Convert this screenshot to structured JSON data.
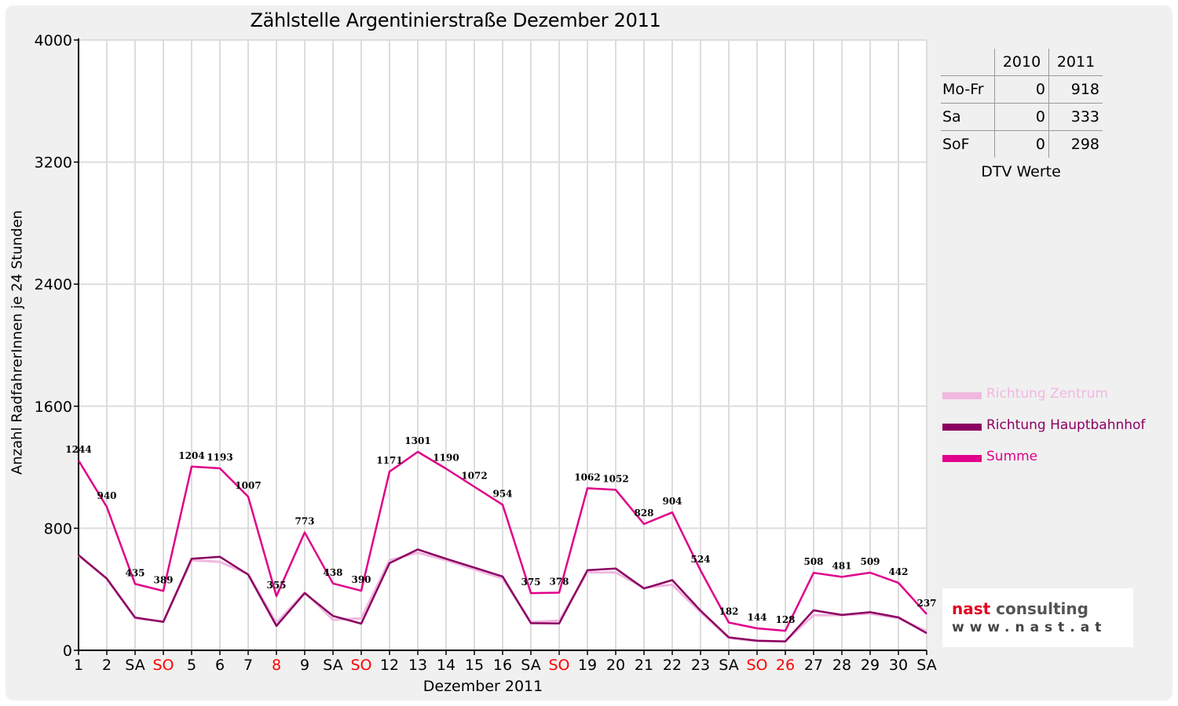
{
  "chart_data": {
    "type": "line",
    "title": "Zählstelle Argentinierstraße Dezember 2011",
    "xlabel": "Dezember 2011",
    "ylabel": "Anzahl RadfahrerInnen je 24 Stunden",
    "ylim": [
      0,
      4000
    ],
    "yticks": [
      "0",
      "800",
      "1600",
      "2400",
      "3200",
      "4000"
    ],
    "grid": true,
    "legend_position": "right",
    "categories": [
      "1",
      "2",
      "SA",
      "SO",
      "5",
      "6",
      "7",
      "8",
      "9",
      "SA",
      "SO",
      "12",
      "13",
      "14",
      "15",
      "16",
      "SA",
      "SO",
      "19",
      "20",
      "21",
      "22",
      "23",
      "SA",
      "SO",
      "26",
      "27",
      "28",
      "29",
      "30",
      "SA"
    ],
    "category_colors": [
      "#000000",
      "#000000",
      "#000000",
      "#ff0000",
      "#000000",
      "#000000",
      "#000000",
      "#ff0000",
      "#000000",
      "#000000",
      "#ff0000",
      "#000000",
      "#000000",
      "#000000",
      "#000000",
      "#000000",
      "#000000",
      "#ff0000",
      "#000000",
      "#000000",
      "#000000",
      "#000000",
      "#000000",
      "#000000",
      "#ff0000",
      "#ff0000",
      "#000000",
      "#000000",
      "#000000",
      "#000000",
      "#000000"
    ],
    "series": [
      {
        "name": "Richtung Zentrum",
        "color": "#f0b8e0",
        "values": [
          620,
          470,
          210,
          190,
          590,
          580,
          500,
          180,
          380,
          200,
          210,
          590,
          640,
          590,
          530,
          470,
          185,
          195,
          510,
          510,
          410,
          430,
          250,
          80,
          60,
          60,
          230,
          230,
          240,
          210,
          125
        ]
      },
      {
        "name": "Richtung Hauptbahnhof",
        "color": "#8b0060",
        "values": [
          624,
          470,
          215,
          186,
          600,
          613,
          496,
          160,
          375,
          225,
          175,
          571,
          661,
          600,
          542,
          484,
          178,
          176,
          525,
          536,
          405,
          460,
          260,
          85,
          63,
          58,
          262,
          232,
          250,
          216,
          112
        ]
      },
      {
        "name": "Summe",
        "color": "#e0008a",
        "values": [
          1244,
          940,
          435,
          389,
          1204,
          1193,
          1007,
          355,
          773,
          438,
          390,
          1171,
          1301,
          1190,
          1072,
          954,
          375,
          378,
          1062,
          1052,
          828,
          904,
          524,
          182,
          144,
          128,
          508,
          481,
          509,
          442,
          237
        ]
      }
    ],
    "data_labels": [
      "1244",
      "940",
      "435",
      "389",
      "1204",
      "1193",
      "1007",
      "355",
      "773",
      "438",
      "390",
      "1171",
      "1301",
      "1190",
      "1072",
      "954",
      "375",
      "378",
      "1062",
      "1052",
      "828",
      "904",
      "524",
      "182",
      "144",
      "128",
      "508",
      "481",
      "509",
      "442",
      "237"
    ]
  },
  "dtv": {
    "columns": [
      "2010",
      "2011"
    ],
    "rows": [
      {
        "label": "Mo-Fr",
        "v2010": "0",
        "v2011": "918"
      },
      {
        "label": "Sa",
        "v2010": "0",
        "v2011": "333"
      },
      {
        "label": "SoF",
        "v2010": "0",
        "v2011": "298"
      }
    ],
    "caption": "DTV Werte"
  },
  "logo": {
    "brand": "nast",
    "suffix": " consulting",
    "url": "www.nast.at"
  }
}
